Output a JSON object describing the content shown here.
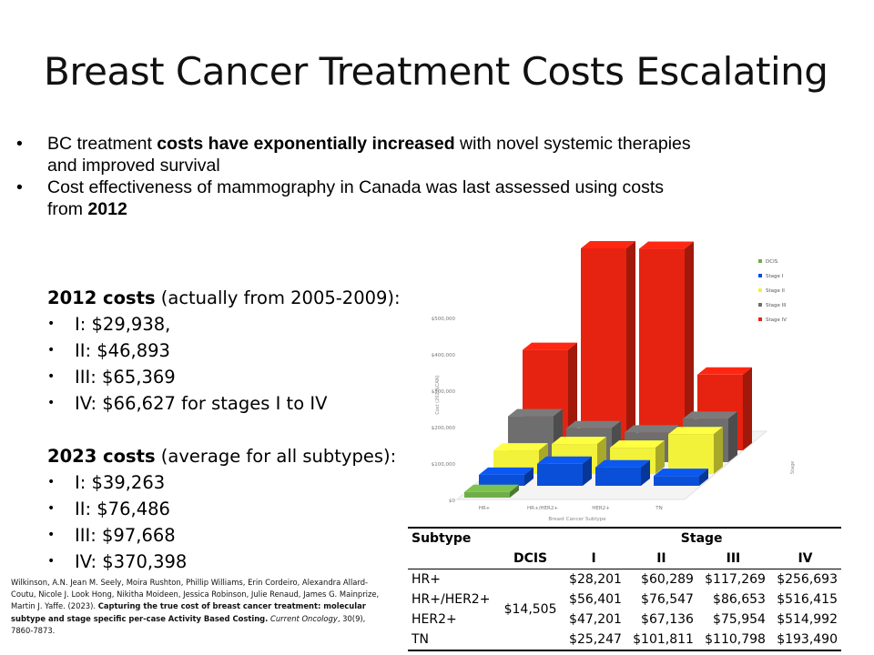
{
  "title": "Breast Cancer Treatment Costs Escalating",
  "bullets": [
    {
      "pre": "BC treatment ",
      "bold": "costs have exponentially increased",
      "post": " with novel systemic therapies",
      "line2": "and improved survival"
    },
    {
      "pre": "Cost effectiveness of mammography in Canada was last assessed using costs",
      "bold": "",
      "post": "",
      "line2_pre": "from ",
      "line2_bold": "2012"
    }
  ],
  "costs2012": {
    "heading_bold": "2012 costs",
    "heading_rest": " (actually from 2005-2009):",
    "items": [
      "I: $29,938,",
      "II: $46,893",
      "III: $65,369",
      "IV: $66,627 for stages I to IV"
    ]
  },
  "costs2023": {
    "heading_bold": "2023 costs",
    "heading_rest": " (average for all subtypes):",
    "items": [
      "I: $39,263",
      "II: $76,486",
      "III: $97,668",
      "IV: $370,398"
    ]
  },
  "citation": {
    "authors": "Wilkinson, A.N. Jean M. Seely, Moira Rushton, Phillip Williams, Erin Cordeiro, Alexandra Allard-Coutu, Nicole J. Look Hong, Nikitha Moideen, Jessica Robinson, Julie Renaud, James G. Mainprize, Martin J. Yaffe. (2023). ",
    "title_bold": "Capturing the true cost of breast cancer treatment: molecular subtype and stage specific per-case Activity Based Costing.",
    "journal": " Current Oncology",
    "volume": ", 30(9), 7860-7873."
  },
  "chart_data": {
    "type": "bar",
    "categories": [
      "HR+",
      "HR+/HER2+",
      "HER2+",
      "TN"
    ],
    "series": [
      {
        "name": "DCIS",
        "values": [
          14505,
          0,
          0,
          0
        ],
        "color": "#70ad47"
      },
      {
        "name": "Stage I",
        "values": [
          28201,
          56401,
          47201,
          25247
        ],
        "color": "#0a4fd8"
      },
      {
        "name": "Stage II",
        "values": [
          60289,
          76547,
          67136,
          101811
        ],
        "color": "#f2f23a"
      },
      {
        "name": "Stage III",
        "values": [
          117269,
          86653,
          75954,
          110798
        ],
        "color": "#6e6e6e"
      },
      {
        "name": "Stage IV",
        "values": [
          256693,
          516415,
          514992,
          193490
        ],
        "color": "#e52310"
      }
    ],
    "y_ticks": [
      "$0",
      "$100,000",
      "$200,000",
      "$300,000",
      "$400,000",
      "$500,000"
    ],
    "xlabel": "Breast Cancer Subtype",
    "ylabel": "Cost (2023$CAN)",
    "zlabel": "Stage",
    "ylim": [
      0,
      600000
    ],
    "legend_position": "top-right"
  },
  "table": {
    "col_subtype": "Subtype",
    "col_stage": "Stage",
    "stage_cols": [
      "DCIS",
      "I",
      "II",
      "III",
      "IV"
    ],
    "dcis_value": "$14,505",
    "rows": [
      {
        "label": "HR+",
        "I": "$28,201",
        "II": "$60,289",
        "III": "$117,269",
        "IV": "$256,693"
      },
      {
        "label": "HR+/HER2+",
        "I": "$56,401",
        "II": "$76,547",
        "III": "$86,653",
        "IV": "$516,415"
      },
      {
        "label": "HER2+",
        "I": "$47,201",
        "II": "$67,136",
        "III": "$75,954",
        "IV": "$514,992"
      },
      {
        "label": "TN",
        "I": "$25,247",
        "II": "$101,811",
        "III": "$110,798",
        "IV": "$193,490"
      }
    ]
  }
}
